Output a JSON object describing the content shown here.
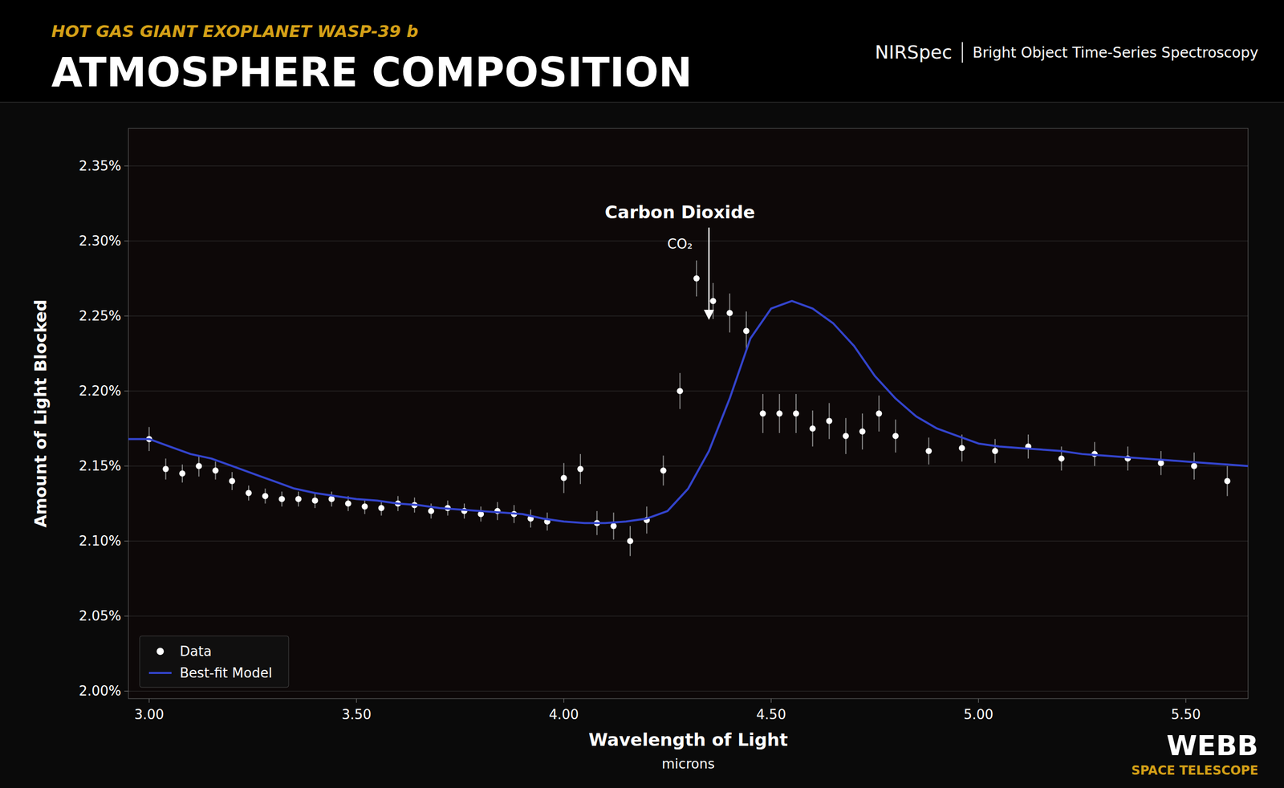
{
  "chart_data": {
    "type": "scatter",
    "title": "ATMOSPHERE COMPOSITION",
    "subtitle": "HOT GAS GIANT EXOPLANET WASP-39 b",
    "instrument": "NIRSpec",
    "method": "Bright Object Time-Series Spectroscopy",
    "xlabel": "Wavelength of Light",
    "xlabel_sub": "microns",
    "ylabel": "Amount of Light Blocked",
    "annotations": [
      "Carbon Dioxide",
      "CO₂"
    ],
    "logo": [
      "WEBB",
      "SPACE TELESCOPE"
    ],
    "xlim": [
      2.95,
      5.65
    ],
    "ylim": [
      1.995,
      2.375
    ],
    "xticks": [
      {
        "value": 3.0,
        "label": "3.00"
      },
      {
        "value": 3.5,
        "label": "3.50"
      },
      {
        "value": 4.0,
        "label": "4.00"
      },
      {
        "value": 4.5,
        "label": "4.50"
      },
      {
        "value": 5.0,
        "label": "5.00"
      },
      {
        "value": 5.5,
        "label": "5.50"
      }
    ],
    "yticks": [
      {
        "value": 2.0,
        "label": "2.00%"
      },
      {
        "value": 2.05,
        "label": "2.05%"
      },
      {
        "value": 2.1,
        "label": "2.10%"
      },
      {
        "value": 2.15,
        "label": "2.15%"
      },
      {
        "value": 2.2,
        "label": "2.20%"
      },
      {
        "value": 2.25,
        "label": "2.25%"
      },
      {
        "value": 2.3,
        "label": "2.30%"
      },
      {
        "value": 2.35,
        "label": "2.35%"
      }
    ],
    "grid": true,
    "legend": "lower left",
    "series": [
      {
        "name": "Data",
        "type": "scatter",
        "marker": "circle",
        "color": "#ffffff",
        "x": [
          3.0,
          3.04,
          3.08,
          3.12,
          3.16,
          3.2,
          3.24,
          3.28,
          3.32,
          3.36,
          3.4,
          3.44,
          3.48,
          3.52,
          3.56,
          3.6,
          3.64,
          3.68,
          3.72,
          3.76,
          3.8,
          3.84,
          3.88,
          3.92,
          3.96,
          4.0,
          4.04,
          4.08,
          4.12,
          4.16,
          4.2,
          4.24,
          4.28,
          4.32,
          4.36,
          4.4,
          4.44,
          4.48,
          4.52,
          4.56,
          4.6,
          4.64,
          4.68,
          4.72,
          4.76,
          4.8,
          4.88,
          4.96,
          5.04,
          5.12,
          5.2,
          5.28,
          5.36,
          5.44,
          5.52,
          5.6
        ],
        "values": [
          2.168,
          2.148,
          2.145,
          2.15,
          2.147,
          2.14,
          2.132,
          2.13,
          2.128,
          2.128,
          2.127,
          2.128,
          2.125,
          2.123,
          2.122,
          2.125,
          2.124,
          2.12,
          2.122,
          2.12,
          2.118,
          2.12,
          2.118,
          2.115,
          2.113,
          2.142,
          2.148,
          2.112,
          2.11,
          2.1,
          2.114,
          2.147,
          2.2,
          2.275,
          2.26,
          2.252,
          2.24,
          2.185,
          2.185,
          2.185,
          2.175,
          2.18,
          2.17,
          2.173,
          2.185,
          2.17,
          2.16,
          2.162,
          2.16,
          2.163,
          2.155,
          2.158,
          2.155,
          2.152,
          2.15,
          2.14
        ],
        "errors": [
          0.008,
          0.007,
          0.006,
          0.007,
          0.006,
          0.006,
          0.005,
          0.005,
          0.005,
          0.005,
          0.005,
          0.005,
          0.005,
          0.005,
          0.005,
          0.005,
          0.005,
          0.005,
          0.005,
          0.005,
          0.005,
          0.006,
          0.006,
          0.006,
          0.006,
          0.01,
          0.01,
          0.008,
          0.009,
          0.01,
          0.009,
          0.01,
          0.012,
          0.012,
          0.012,
          0.013,
          0.013,
          0.013,
          0.013,
          0.013,
          0.012,
          0.012,
          0.012,
          0.012,
          0.012,
          0.011,
          0.009,
          0.009,
          0.008,
          0.008,
          0.008,
          0.008,
          0.008,
          0.008,
          0.009,
          0.01
        ]
      },
      {
        "name": "Best-fit Model",
        "type": "line",
        "color": "#3344cc",
        "x": [
          2.95,
          3.0,
          3.05,
          3.1,
          3.15,
          3.2,
          3.25,
          3.3,
          3.35,
          3.4,
          3.45,
          3.5,
          3.55,
          3.6,
          3.65,
          3.7,
          3.75,
          3.8,
          3.85,
          3.9,
          3.95,
          4.0,
          4.05,
          4.1,
          4.15,
          4.2,
          4.25,
          4.3,
          4.35,
          4.4,
          4.45,
          4.5,
          4.55,
          4.6,
          4.65,
          4.7,
          4.75,
          4.8,
          4.85,
          4.9,
          4.95,
          5.0,
          5.05,
          5.1,
          5.15,
          5.2,
          5.25,
          5.3,
          5.35,
          5.4,
          5.45,
          5.5,
          5.55,
          5.6,
          5.65
        ],
        "values": [
          2.168,
          2.168,
          2.163,
          2.158,
          2.155,
          2.15,
          2.145,
          2.14,
          2.135,
          2.132,
          2.13,
          2.128,
          2.127,
          2.125,
          2.124,
          2.122,
          2.121,
          2.12,
          2.119,
          2.118,
          2.115,
          2.113,
          2.112,
          2.112,
          2.113,
          2.115,
          2.12,
          2.135,
          2.16,
          2.195,
          2.235,
          2.255,
          2.26,
          2.255,
          2.245,
          2.23,
          2.21,
          2.195,
          2.183,
          2.175,
          2.17,
          2.165,
          2.163,
          2.162,
          2.161,
          2.16,
          2.158,
          2.157,
          2.156,
          2.155,
          2.154,
          2.153,
          2.152,
          2.151,
          2.15
        ]
      }
    ]
  }
}
